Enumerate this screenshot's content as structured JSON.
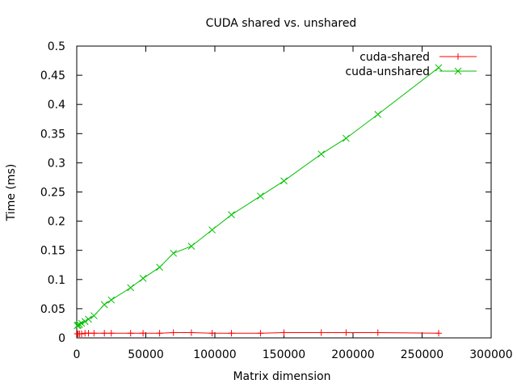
{
  "chart_data": {
    "type": "line",
    "title": "CUDA shared vs. unshared",
    "xlabel": "Matrix dimension",
    "ylabel": "Time (ms)",
    "xlim": [
      0,
      300000
    ],
    "ylim": [
      0,
      0.5
    ],
    "xticks": [
      0,
      50000,
      100000,
      150000,
      200000,
      250000,
      300000
    ],
    "yticks": [
      0,
      0.05,
      0.1,
      0.15,
      0.2,
      0.25,
      0.3,
      0.35,
      0.4,
      0.45,
      0.5
    ],
    "xtick_labels": [
      "0",
      "50000",
      "100000",
      "150000",
      "200000",
      "250000",
      "300000"
    ],
    "ytick_labels": [
      "0",
      "0.05",
      "0.1",
      "0.15",
      "0.2",
      "0.25",
      "0.3",
      "0.35",
      "0.4",
      "0.45",
      "0.5"
    ],
    "grid": false,
    "legend_position": "top-right",
    "series": [
      {
        "name": "cuda-shared",
        "color": "#ff0000",
        "marker": "plus",
        "x": [
          400,
          1000,
          2000,
          3500,
          6000,
          8500,
          12500,
          20000,
          25000,
          39000,
          48000,
          60000,
          70000,
          83000,
          98000,
          112000,
          133000,
          150000,
          177000,
          195000,
          218000,
          262000
        ],
        "y": [
          0.007,
          0.007,
          0.007,
          0.007,
          0.008,
          0.008,
          0.008,
          0.008,
          0.008,
          0.008,
          0.008,
          0.008,
          0.009,
          0.009,
          0.008,
          0.008,
          0.008,
          0.009,
          0.009,
          0.009,
          0.009,
          0.008
        ]
      },
      {
        "name": "cuda-unshared",
        "color": "#00c000",
        "marker": "x",
        "x": [
          400,
          1000,
          2000,
          3500,
          6000,
          8500,
          12500,
          20000,
          25000,
          39000,
          48000,
          60000,
          70000,
          83000,
          98000,
          112000,
          133000,
          150000,
          177000,
          195000,
          218000,
          262000
        ],
        "y": [
          0.021,
          0.022,
          0.023,
          0.025,
          0.028,
          0.032,
          0.038,
          0.057,
          0.065,
          0.086,
          0.102,
          0.121,
          0.145,
          0.157,
          0.185,
          0.211,
          0.243,
          0.269,
          0.315,
          0.342,
          0.383,
          0.463
        ]
      }
    ]
  }
}
